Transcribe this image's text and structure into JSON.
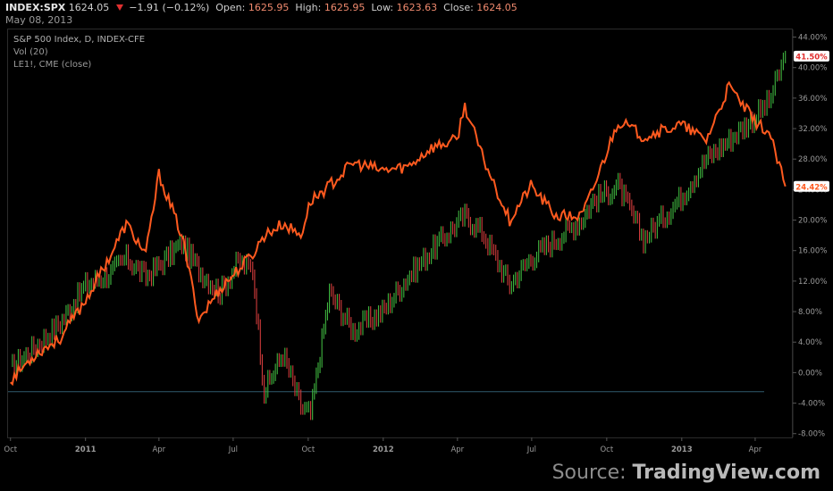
{
  "header": {
    "symbol": "INDEX:SPX",
    "last": "1624.05",
    "change": "−1.91 (−0.12%)",
    "open_label": "Open:",
    "open": "1625.95",
    "high_label": "High:",
    "high": "1625.95",
    "low_label": "Low:",
    "low": "1623.63",
    "close_label": "Close:",
    "close": "1624.05",
    "date": "May 08, 2013"
  },
  "legend": [
    "S&P 500 Index, D, INDEX-CFE",
    "Vol (20)",
    "LE1!, CME (close)"
  ],
  "source": {
    "prefix": "Source: ",
    "brand": "TradingView.com"
  },
  "colors": {
    "spx_up": "#3fb53f",
    "spx_down": "#d23c3c",
    "le1": "#ff5a1f",
    "badge_green": "#e12d2d",
    "badge_orange": "#ff5a1f",
    "baseline": "#2f5a6e"
  },
  "chart_data": {
    "type": "line",
    "x_ticks": [
      "Oct",
      "2011",
      "Apr",
      "Jul",
      "Oct",
      "2012",
      "Apr",
      "Jul",
      "Oct",
      "2013",
      "Apr"
    ],
    "y_ticks": [
      "44.00%",
      "40.00%",
      "36.00%",
      "32.00%",
      "28.00%",
      "24.00%",
      "20.00%",
      "16.00%",
      "12.00%",
      "8.00%",
      "4.00%",
      "0.00%",
      "-4.00%",
      "-8.00%"
    ],
    "ylim": [
      -8.5,
      45
    ],
    "x": [
      "2010-10-01",
      "2010-11-01",
      "2010-12-01",
      "2011-01-01",
      "2011-02-01",
      "2011-02-20",
      "2011-03-16",
      "2011-04-01",
      "2011-04-29",
      "2011-05-20",
      "2011-06-15",
      "2011-07-07",
      "2011-07-25",
      "2011-08-08",
      "2011-08-31",
      "2011-09-22",
      "2011-10-04",
      "2011-10-27",
      "2011-11-25",
      "2011-12-31",
      "2012-01-31",
      "2012-02-29",
      "2012-03-31",
      "2012-04-10",
      "2012-05-01",
      "2012-06-04",
      "2012-06-30",
      "2012-07-31",
      "2012-08-31",
      "2012-09-14",
      "2012-10-15",
      "2012-11-15",
      "2012-12-31",
      "2013-01-31",
      "2013-02-28",
      "2013-03-31",
      "2013-04-18",
      "2013-05-08"
    ],
    "series": [
      {
        "name": "S&P 500 Index",
        "values": [
          0.5,
          3.5,
          6.5,
          11.5,
          13.0,
          15.0,
          12.5,
          14.0,
          17.0,
          13.5,
          10.5,
          14.5,
          13.5,
          -2.5,
          2.5,
          -4.5,
          -5.5,
          10.5,
          5.5,
          8.0,
          12.5,
          16.0,
          19.5,
          20.5,
          18.5,
          11.5,
          15.0,
          17.5,
          20.0,
          22.5,
          24.5,
          17.5,
          23.0,
          28.0,
          30.5,
          33.5,
          35.5,
          41.5
        ]
      },
      {
        "name": "LE1!, CME (close)",
        "values": [
          -1.0,
          2.5,
          4.5,
          9.5,
          15.5,
          19.5,
          15.5,
          26.0,
          18.0,
          7.0,
          11.0,
          13.5,
          15.5,
          18.0,
          19.5,
          18.0,
          22.5,
          24.5,
          27.5,
          26.5,
          27.0,
          29.5,
          30.5,
          35.0,
          28.5,
          20.0,
          24.5,
          20.5,
          20.5,
          24.0,
          33.0,
          31.0,
          32.5,
          30.5,
          37.5,
          33.0,
          31.5,
          24.42
        ]
      }
    ],
    "markers": [
      {
        "series": "S&P 500 Index",
        "label": "41.50%"
      },
      {
        "series": "LE1!, CME (close)",
        "label": "24.42%"
      }
    ],
    "baseline": -2.5
  }
}
